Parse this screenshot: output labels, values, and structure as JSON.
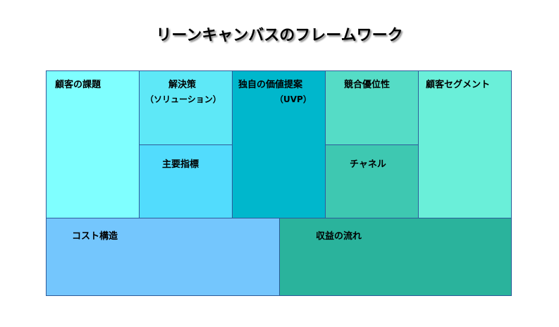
{
  "title": "リーンキャンバスのフレームワーク",
  "blocks": {
    "problem": {
      "label": "顧客の課題",
      "color": "#7fffff"
    },
    "solution": {
      "label": "解決策",
      "sub": "（ソリューション）",
      "color": "#5ee8f7"
    },
    "key_metrics": {
      "label": "主要指標",
      "color": "#52dcfd"
    },
    "uvp": {
      "label": "独自の価値提案",
      "sub": "（UVP）",
      "color": "#00b7cc"
    },
    "unfair_advantage": {
      "label": "競合優位性",
      "color": "#55dcc6"
    },
    "channels": {
      "label": "チャネル",
      "color": "#3ec8b1"
    },
    "customer_segments": {
      "label": "顧客セグメント",
      "color": "#6aefd9"
    },
    "cost_structure": {
      "label": "コスト構造",
      "color": "#74c6fd"
    },
    "revenue_streams": {
      "label": "収益の流れ",
      "color": "#2ab39c"
    }
  }
}
